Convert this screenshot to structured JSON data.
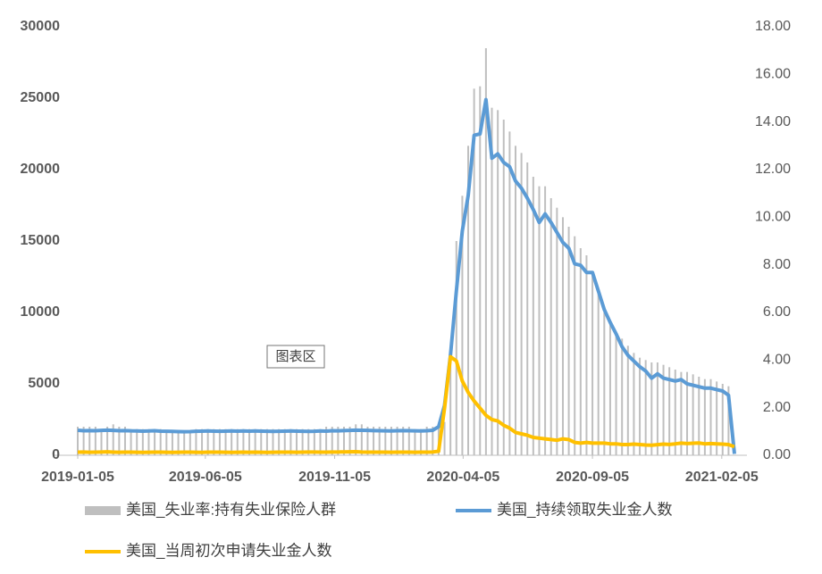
{
  "chart_data": {
    "type": "combo",
    "tooltip": "图表区",
    "x": [
      "2019-01-05",
      "2019-01-12",
      "2019-01-19",
      "2019-01-26",
      "2019-02-02",
      "2019-02-09",
      "2019-02-16",
      "2019-02-23",
      "2019-03-02",
      "2019-03-09",
      "2019-03-16",
      "2019-03-23",
      "2019-03-30",
      "2019-04-06",
      "2019-04-13",
      "2019-04-20",
      "2019-04-27",
      "2019-05-04",
      "2019-05-11",
      "2019-05-18",
      "2019-05-25",
      "2019-06-01",
      "2019-06-08",
      "2019-06-15",
      "2019-06-22",
      "2019-06-29",
      "2019-07-06",
      "2019-07-13",
      "2019-07-20",
      "2019-07-27",
      "2019-08-03",
      "2019-08-10",
      "2019-08-17",
      "2019-08-24",
      "2019-08-31",
      "2019-09-07",
      "2019-09-14",
      "2019-09-21",
      "2019-09-28",
      "2019-10-05",
      "2019-10-12",
      "2019-10-19",
      "2019-10-26",
      "2019-11-02",
      "2019-11-09",
      "2019-11-16",
      "2019-11-23",
      "2019-11-30",
      "2019-12-07",
      "2019-12-14",
      "2019-12-21",
      "2019-12-28",
      "2020-01-04",
      "2020-01-11",
      "2020-01-18",
      "2020-01-25",
      "2020-02-01",
      "2020-02-08",
      "2020-02-15",
      "2020-02-22",
      "2020-02-29",
      "2020-03-07",
      "2020-03-14",
      "2020-03-21",
      "2020-03-28",
      "2020-04-04",
      "2020-04-11",
      "2020-04-18",
      "2020-04-25",
      "2020-05-02",
      "2020-05-09",
      "2020-05-16",
      "2020-05-23",
      "2020-05-30",
      "2020-06-06",
      "2020-06-13",
      "2020-06-20",
      "2020-06-27",
      "2020-07-04",
      "2020-07-11",
      "2020-07-18",
      "2020-07-25",
      "2020-08-01",
      "2020-08-08",
      "2020-08-15",
      "2020-08-22",
      "2020-08-29",
      "2020-09-05",
      "2020-09-12",
      "2020-09-19",
      "2020-09-26",
      "2020-10-03",
      "2020-10-10",
      "2020-10-17",
      "2020-10-24",
      "2020-10-31",
      "2020-11-07",
      "2020-11-14",
      "2020-11-21",
      "2020-11-28",
      "2020-12-05",
      "2020-12-12",
      "2020-12-19",
      "2020-12-26",
      "2021-01-02",
      "2021-01-09",
      "2021-01-16",
      "2021-01-23",
      "2021-01-30",
      "2021-02-06",
      "2021-02-13",
      "2021-02-20"
    ],
    "xticks": [
      "2019-01-05",
      "2019-06-05",
      "2019-11-05",
      "2020-04-05",
      "2020-09-05",
      "2021-02-05"
    ],
    "ylim": [
      0,
      30000
    ],
    "yticks": [
      0,
      5000,
      10000,
      15000,
      20000,
      25000,
      30000
    ],
    "y2lim": [
      0,
      18
    ],
    "y2ticks": [
      {
        "value": 0,
        "label": "0.00"
      },
      {
        "value": 2,
        "label": "2.00"
      },
      {
        "value": 4,
        "label": "4.00"
      },
      {
        "value": 6,
        "label": "6.00"
      },
      {
        "value": 8,
        "label": "8.00"
      },
      {
        "value": 10,
        "label": "10.00"
      },
      {
        "value": 12,
        "label": "12.00"
      },
      {
        "value": 14,
        "label": "14.00"
      },
      {
        "value": 16,
        "label": "16.00"
      },
      {
        "value": 18,
        "label": "18.00"
      }
    ],
    "series": [
      {
        "name": "美国_失业率:持有失业保险人群",
        "type": "bar",
        "axis": "y2",
        "color": "#bfbfbf",
        "values": [
          1.2,
          1.2,
          1.2,
          1.2,
          1.1,
          1.2,
          1.3,
          1.2,
          1.2,
          1.1,
          1.1,
          1.1,
          1.1,
          1.1,
          1.1,
          1.0,
          1.0,
          1.0,
          1.0,
          1.0,
          1.1,
          1.1,
          1.1,
          1.1,
          1.1,
          1.1,
          1.1,
          1.1,
          1.1,
          1.1,
          1.1,
          1.1,
          1.1,
          1.1,
          1.1,
          1.1,
          1.1,
          1.1,
          1.1,
          1.1,
          1.1,
          1.1,
          1.2,
          1.2,
          1.2,
          1.2,
          1.2,
          1.3,
          1.3,
          1.2,
          1.2,
          1.2,
          1.2,
          1.2,
          1.2,
          1.2,
          1.2,
          1.1,
          1.1,
          1.2,
          1.2,
          1.2,
          1.4,
          4.1,
          9.0,
          10.9,
          13.0,
          15.4,
          15.5,
          17.1,
          14.6,
          14.5,
          14.1,
          13.6,
          13.0,
          12.7,
          12.3,
          11.7,
          11.3,
          11.3,
          10.8,
          10.4,
          10.0,
          9.6,
          9.2,
          8.7,
          8.4,
          7.7,
          6.9,
          6.0,
          5.6,
          5.2,
          4.9,
          4.6,
          4.3,
          4.1,
          4.0,
          3.9,
          3.9,
          3.8,
          3.7,
          3.6,
          3.5,
          3.5,
          3.4,
          3.3,
          3.2,
          3.2,
          3.1,
          3.0,
          2.9,
          null
        ]
      },
      {
        "name": "美国_持续领取失业金人数",
        "type": "line",
        "color": "#5b9bd5",
        "values": [
          1750,
          1720,
          1730,
          1720,
          1740,
          1760,
          1740,
          1720,
          1730,
          1710,
          1700,
          1690,
          1700,
          1720,
          1690,
          1680,
          1670,
          1660,
          1650,
          1660,
          1680,
          1690,
          1700,
          1690,
          1680,
          1690,
          1700,
          1690,
          1700,
          1690,
          1700,
          1690,
          1680,
          1670,
          1680,
          1690,
          1700,
          1690,
          1680,
          1670,
          1680,
          1700,
          1690,
          1720,
          1710,
          1730,
          1740,
          1760,
          1750,
          1740,
          1730,
          1720,
          1710,
          1700,
          1720,
          1730,
          1720,
          1710,
          1700,
          1720,
          1750,
          2000,
          3500,
          7000,
          11500,
          15700,
          18200,
          22400,
          22500,
          24900,
          20800,
          21100,
          20500,
          20200,
          19200,
          18700,
          18000,
          17200,
          16300,
          16900,
          16300,
          15600,
          14900,
          14500,
          13400,
          13300,
          12800,
          12800,
          11500,
          10200,
          9300,
          8500,
          7600,
          7000,
          6600,
          6200,
          5900,
          5400,
          5700,
          5400,
          5300,
          5200,
          5300,
          5000,
          4900,
          4800,
          4700,
          4700,
          4600,
          4500,
          4200,
          100
        ]
      },
      {
        "name": "美国_当周初次申请失业金人数",
        "type": "line",
        "color": "#ffc000",
        "values": [
          220,
          230,
          210,
          220,
          230,
          240,
          220,
          210,
          220,
          215,
          210,
          205,
          210,
          220,
          215,
          210,
          205,
          210,
          220,
          215,
          210,
          205,
          215,
          220,
          215,
          210,
          205,
          210,
          215,
          210,
          215,
          210,
          205,
          210,
          215,
          220,
          215,
          210,
          215,
          225,
          230,
          220,
          215,
          225,
          230,
          235,
          240,
          250,
          230,
          220,
          215,
          220,
          215,
          210,
          215,
          220,
          215,
          210,
          215,
          220,
          230,
          280,
          3300,
          6900,
          6600,
          5200,
          4400,
          3800,
          3300,
          2800,
          2500,
          2400,
          2100,
          1900,
          1600,
          1500,
          1400,
          1250,
          1200,
          1150,
          1100,
          1050,
          1150,
          1100,
          900,
          850,
          900,
          850,
          850,
          850,
          800,
          800,
          750,
          750,
          780,
          750,
          720,
          700,
          740,
          780,
          760,
          800,
          850,
          820,
          840,
          860,
          800,
          820,
          800,
          780,
          750,
          600
        ]
      }
    ]
  }
}
